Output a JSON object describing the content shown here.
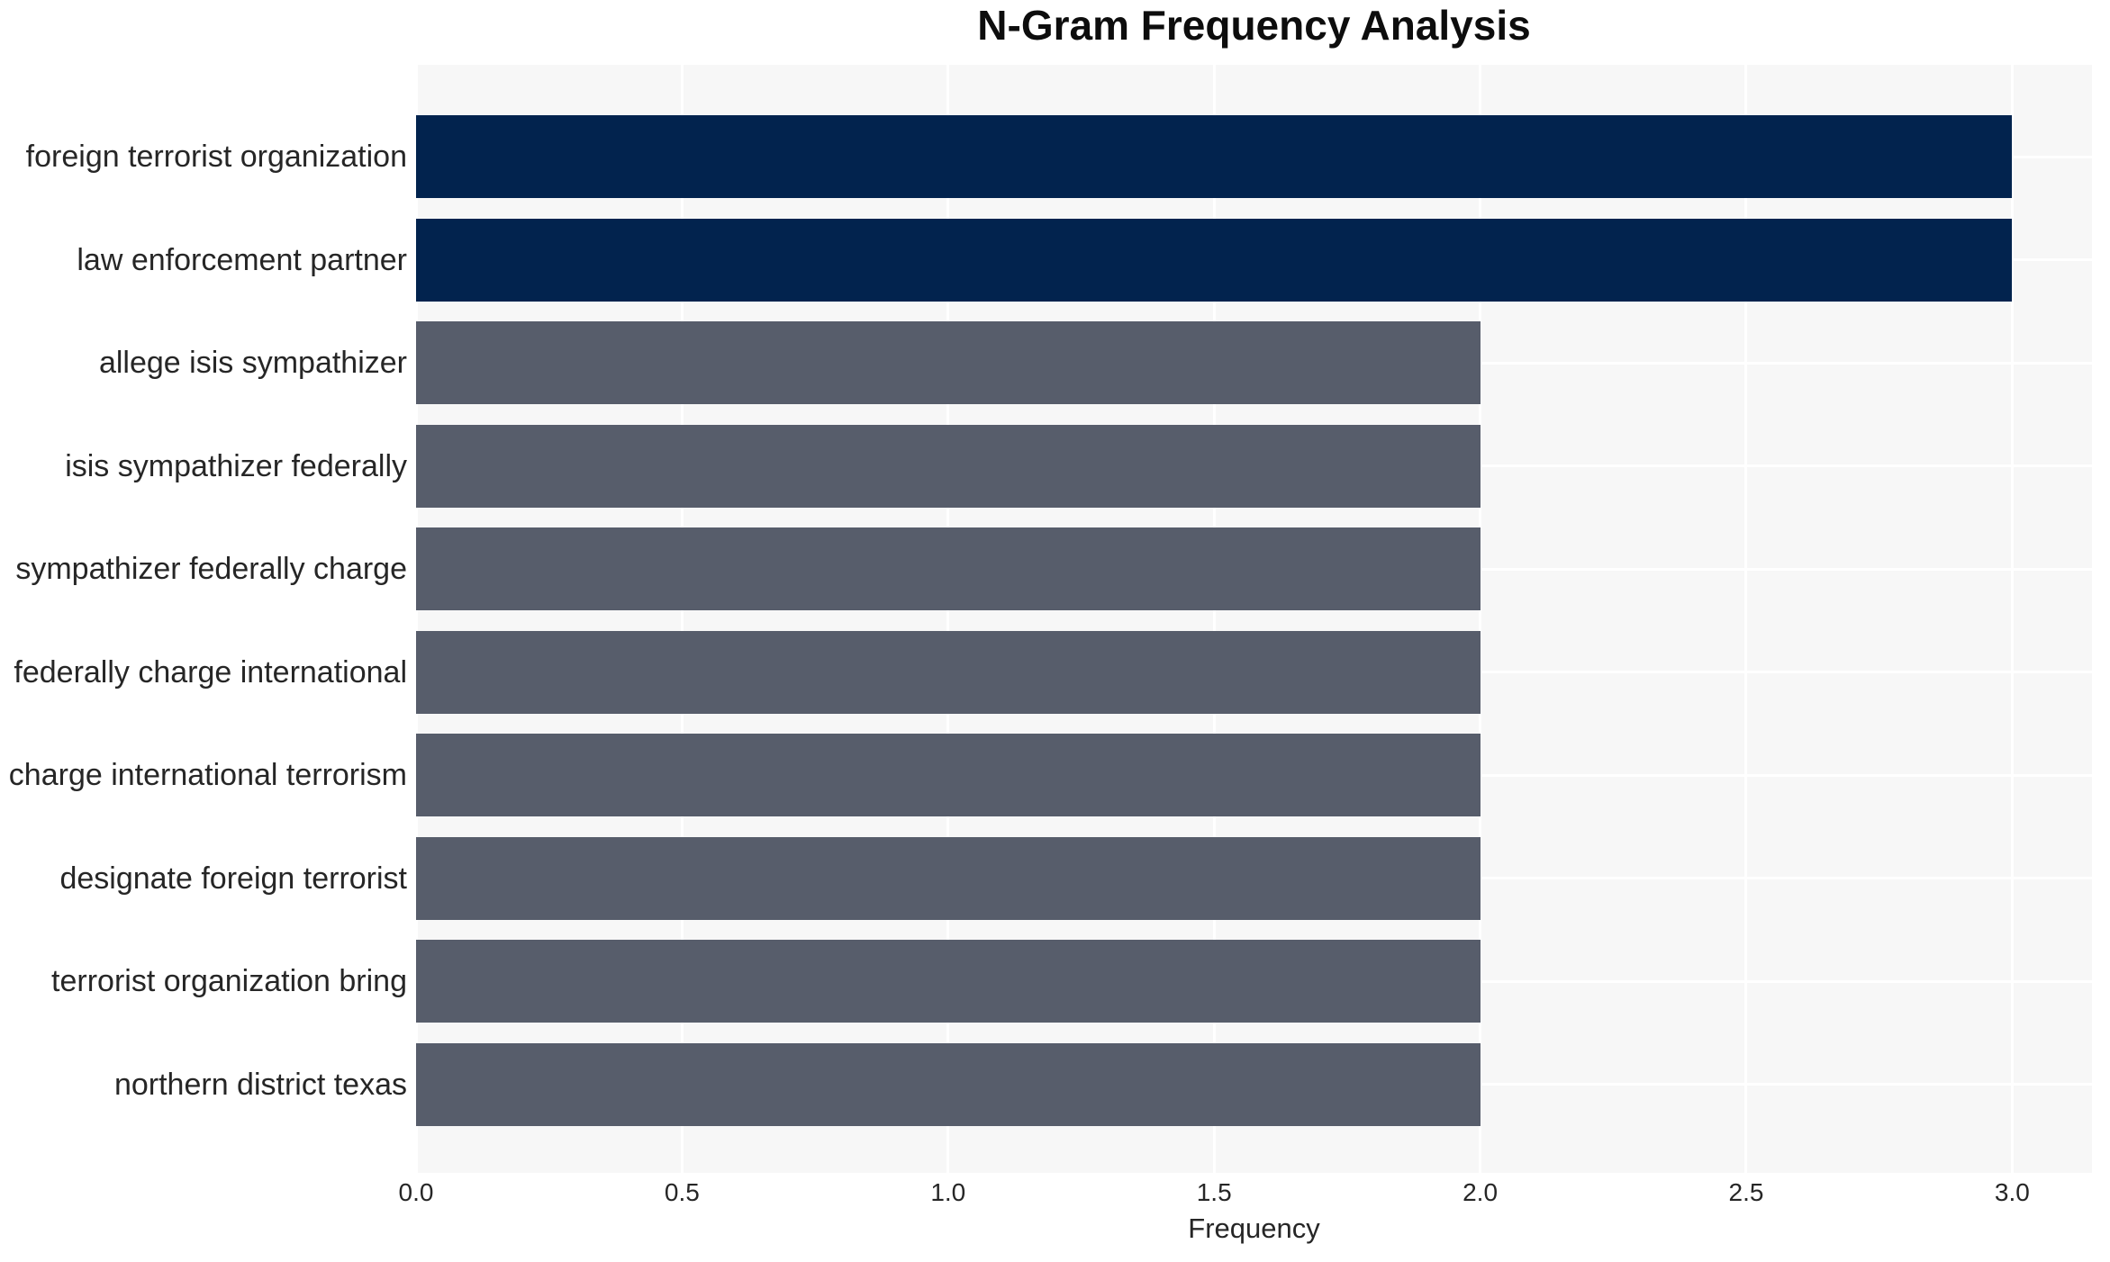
{
  "chart_data": {
    "type": "bar",
    "orientation": "horizontal",
    "title": "N-Gram Frequency Analysis",
    "xlabel": "Frequency",
    "ylabel": "",
    "categories": [
      "foreign terrorist organization",
      "law enforcement partner",
      "allege isis sympathizer",
      "isis sympathizer federally",
      "sympathizer federally charge",
      "federally charge international",
      "charge international terrorism",
      "designate foreign terrorist",
      "terrorist organization bring",
      "northern district texas"
    ],
    "values": [
      3,
      3,
      2,
      2,
      2,
      2,
      2,
      2,
      2,
      2
    ],
    "bar_colors": [
      "#02234e",
      "#02234e",
      "#575d6b",
      "#575d6b",
      "#575d6b",
      "#575d6b",
      "#575d6b",
      "#575d6b",
      "#575d6b",
      "#575d6b"
    ],
    "xlim": [
      0,
      3.15
    ],
    "xticks": [
      0.0,
      0.5,
      1.0,
      1.5,
      2.0,
      2.5,
      3.0
    ],
    "xtick_labels": [
      "0.0",
      "0.5",
      "1.0",
      "1.5",
      "2.0",
      "2.5",
      "3.0"
    ],
    "grid": true,
    "legend": null,
    "colors": {
      "bar_high": "#02234e",
      "bar_default": "#575d6b",
      "plot_background": "#f7f7f7",
      "gridline": "#ffffff",
      "tick_text": "#262626",
      "title_text": "#0d0d0d"
    }
  }
}
